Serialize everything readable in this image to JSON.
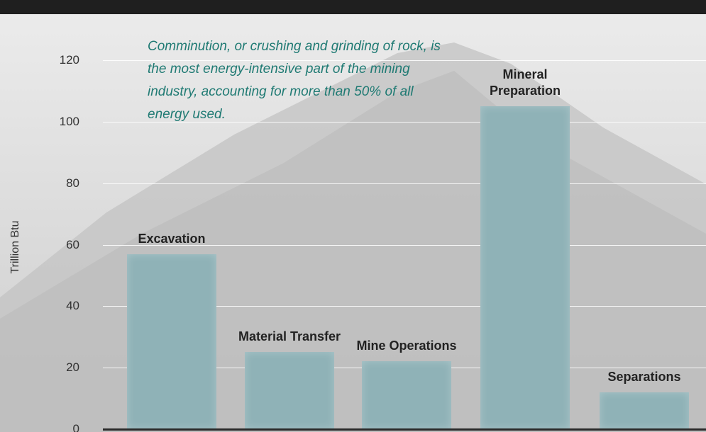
{
  "chart_data": {
    "type": "bar",
    "y_label": "Trillion Btu",
    "annotation": "Comminution, or crushing and grinding of rock, is the most energy-intensive part of the mining industry, accounting for more than 50% of all energy used.",
    "categories": [
      "Excavation",
      "Material Transfer",
      "Mine Operations",
      "Mineral Preparation",
      "Separations"
    ],
    "values": [
      57,
      25,
      22,
      105,
      12
    ],
    "color": "#8fb2b7",
    "ylim": [
      0,
      120
    ],
    "yticks": [
      0,
      20,
      40,
      60,
      80,
      100,
      120
    ],
    "grid": true
  }
}
